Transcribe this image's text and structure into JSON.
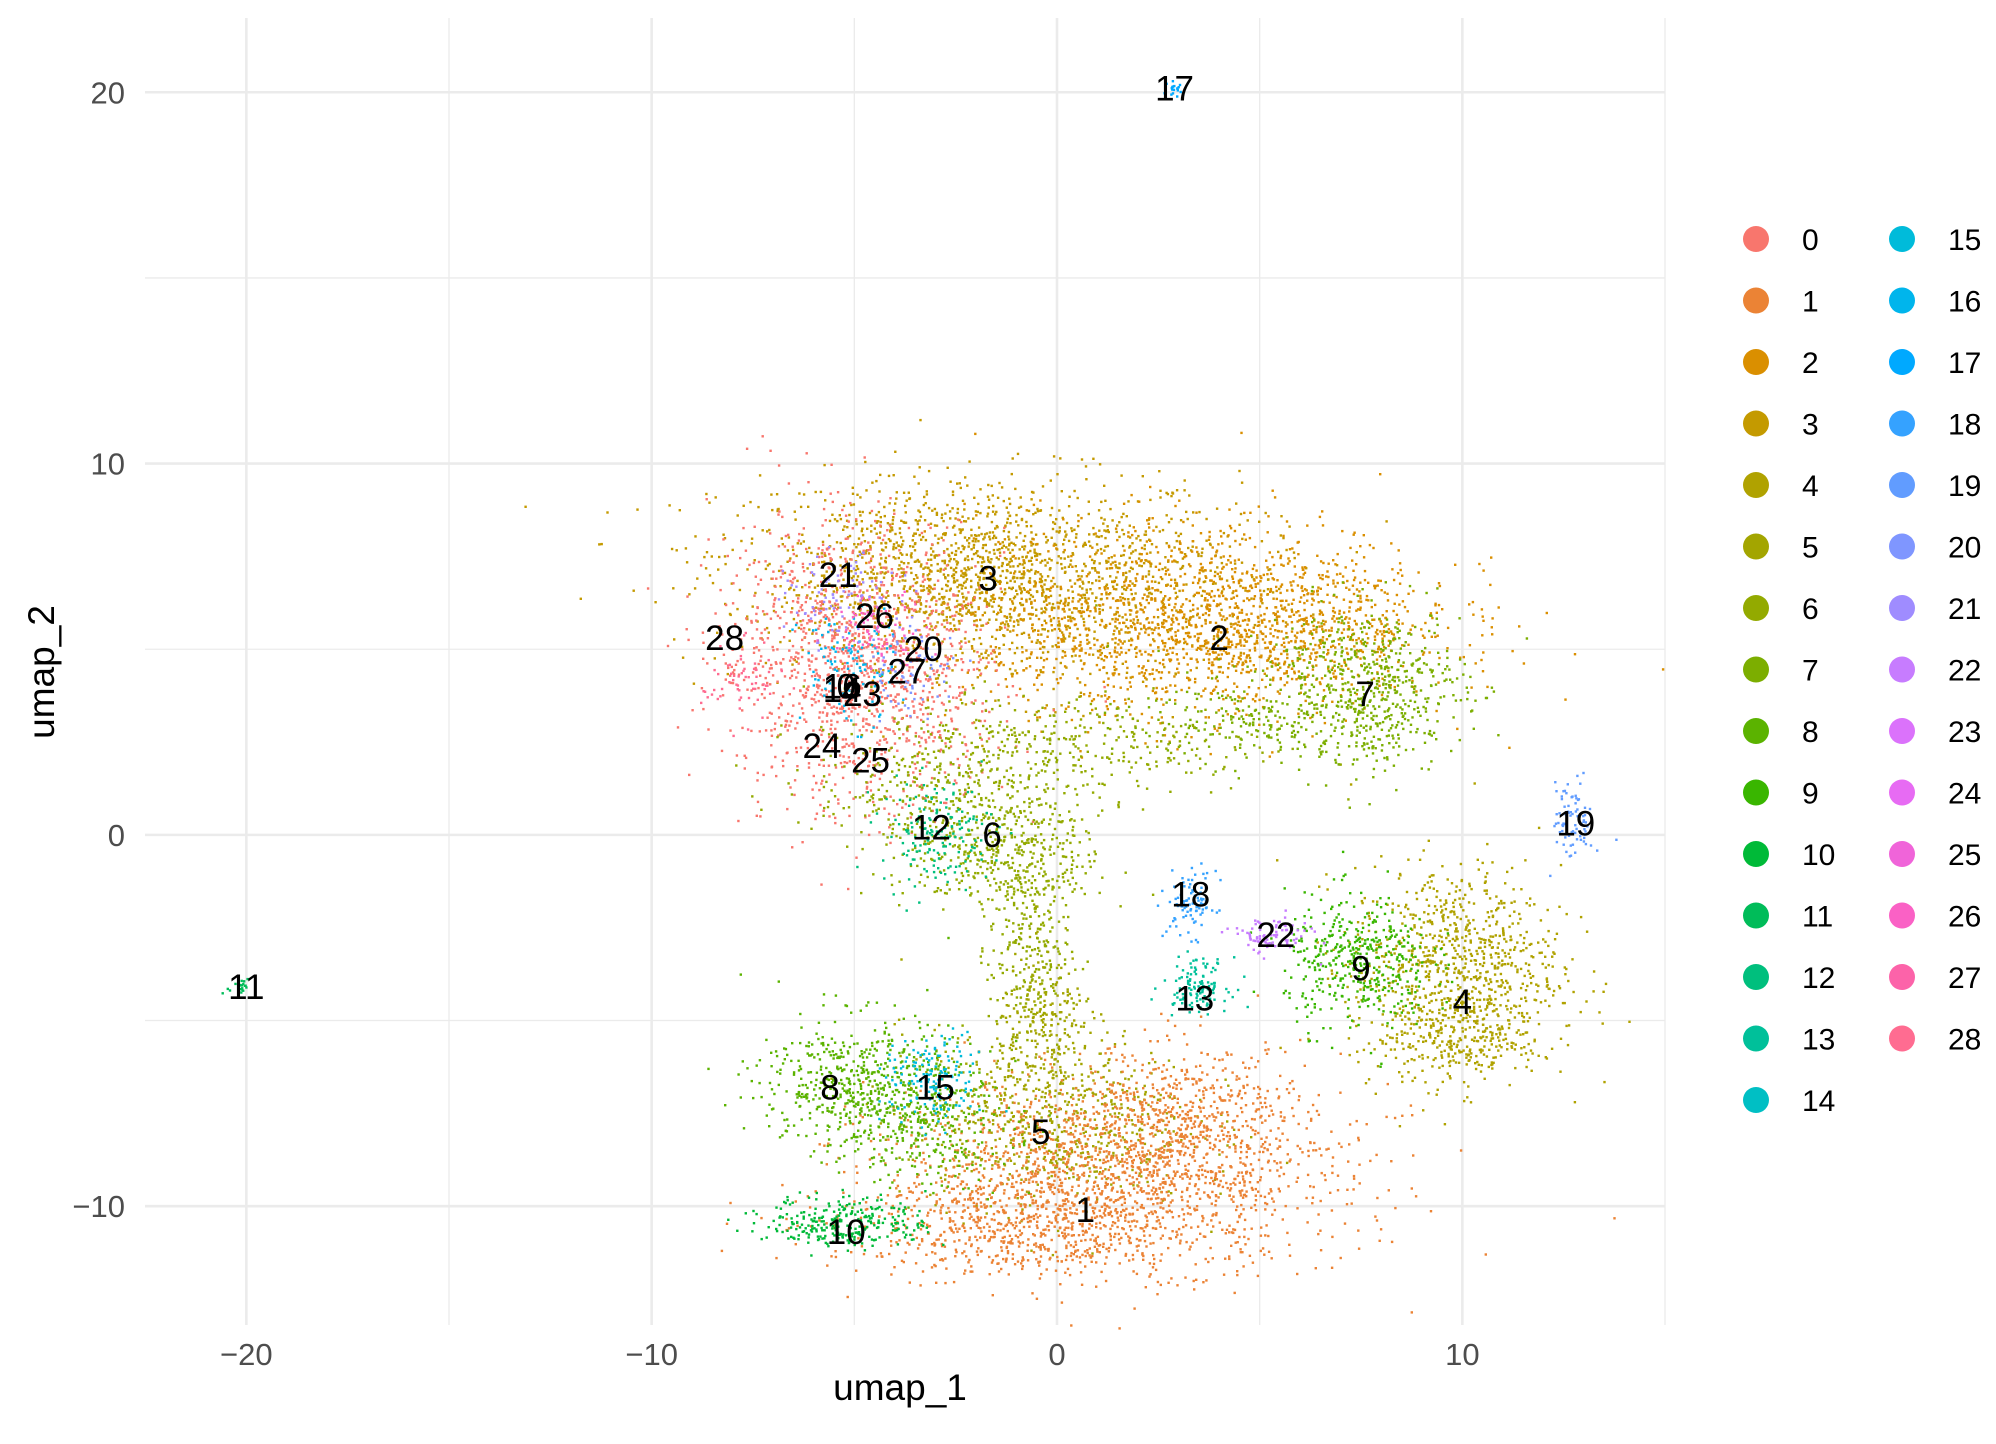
{
  "chart_data": {
    "type": "scatter",
    "title": "",
    "xlabel": "umap_1",
    "ylabel": "umap_2",
    "xlim": [
      -22.5,
      15
    ],
    "ylim": [
      -13.2,
      22
    ],
    "x_ticks": [
      -20,
      -10,
      0,
      10
    ],
    "y_ticks": [
      -10,
      0,
      10,
      20
    ],
    "x_tick_labels": [
      "−20",
      "−10",
      "0",
      "10"
    ],
    "y_tick_labels": [
      "−10",
      "0",
      "10",
      "20"
    ],
    "grid": true,
    "legend_position": "right",
    "legend_columns": 2,
    "clusters": [
      {
        "name": "0",
        "color": "#F8766D",
        "label_x": -5.2,
        "label_y": 4.0
      },
      {
        "name": "1",
        "color": "#EB8335",
        "label_x": 0.7,
        "label_y": -10.1
      },
      {
        "name": "2",
        "color": "#DA8F00",
        "label_x": 4.0,
        "label_y": 5.3
      },
      {
        "name": "3",
        "color": "#C49A00",
        "label_x": -1.7,
        "label_y": 6.9
      },
      {
        "name": "4",
        "color": "#B0A200",
        "label_x": 10.0,
        "label_y": -4.5
      },
      {
        "name": "5",
        "color": "#A3A500",
        "label_x": -0.4,
        "label_y": -8.0
      },
      {
        "name": "6",
        "color": "#93AA00",
        "label_x": -1.6,
        "label_y": 0.0
      },
      {
        "name": "7",
        "color": "#7CAE00",
        "label_x": 7.6,
        "label_y": 3.8
      },
      {
        "name": "8",
        "color": "#5BB300",
        "label_x": -5.6,
        "label_y": -6.8
      },
      {
        "name": "9",
        "color": "#39B600",
        "label_x": 7.5,
        "label_y": -3.6
      },
      {
        "name": "10",
        "color": "#00BA38",
        "label_x": -5.2,
        "label_y": -10.7
      },
      {
        "name": "11",
        "color": "#00BC59",
        "label_x": -20.0,
        "label_y": -4.1
      },
      {
        "name": "12",
        "color": "#00BF7D",
        "label_x": -3.1,
        "label_y": 0.2
      },
      {
        "name": "13",
        "color": "#00C09A",
        "label_x": 3.4,
        "label_y": -4.4
      },
      {
        "name": "14",
        "color": "#00BFC4",
        "label_x": -5.3,
        "label_y": 3.9
      },
      {
        "name": "15",
        "color": "#00BBDA",
        "label_x": -3.0,
        "label_y": -6.8
      },
      {
        "name": "16",
        "color": "#00B5EC",
        "label_x": -5.3,
        "label_y": 4.0
      },
      {
        "name": "17",
        "color": "#00A9FF",
        "label_x": 2.9,
        "label_y": 20.1
      },
      {
        "name": "18",
        "color": "#35A2FF",
        "label_x": 3.3,
        "label_y": -1.6
      },
      {
        "name": "19",
        "color": "#619CFF",
        "label_x": 12.8,
        "label_y": 0.3
      },
      {
        "name": "20",
        "color": "#7F96FF",
        "label_x": -3.3,
        "label_y": 5.0
      },
      {
        "name": "21",
        "color": "#9F8CFF",
        "label_x": -5.4,
        "label_y": 7.0
      },
      {
        "name": "22",
        "color": "#C77CFF",
        "label_x": 5.4,
        "label_y": -2.7
      },
      {
        "name": "23",
        "color": "#DB72FB",
        "label_x": -4.8,
        "label_y": 3.8
      },
      {
        "name": "24",
        "color": "#E76BF3",
        "label_x": -5.8,
        "label_y": 2.4
      },
      {
        "name": "25",
        "color": "#F064D9",
        "label_x": -4.6,
        "label_y": 2.0
      },
      {
        "name": "26",
        "color": "#FA61C5",
        "label_x": -4.5,
        "label_y": 5.9
      },
      {
        "name": "27",
        "color": "#FC63A9",
        "label_x": -3.7,
        "label_y": 4.4
      },
      {
        "name": "28",
        "color": "#FF6C91",
        "label_x": -8.2,
        "label_y": 5.3
      }
    ]
  }
}
